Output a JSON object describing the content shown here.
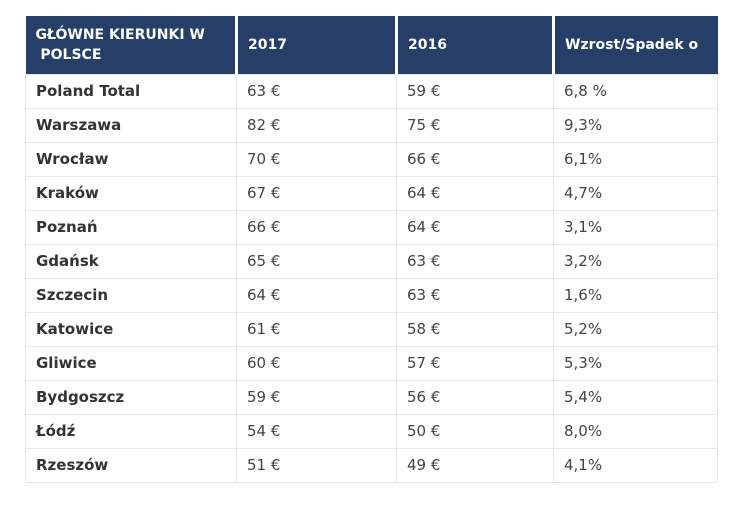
{
  "colors": {
    "header_bg": "#253f68",
    "header_text": "#ffffff",
    "grid": "#e7e7e7",
    "name_text": "#333333",
    "value_text": "#444444",
    "page_bg": "#ffffff"
  },
  "chart_data": {
    "type": "table",
    "title": "GŁÓWNE KIERUNKI W POLSCE",
    "columns": [
      "GŁÓWNE KIERUNKI W\n POLSCE",
      "2017",
      "2016",
      "Wzrost/Spadek o"
    ],
    "rows": [
      [
        "Poland Total",
        "63 €",
        "59 €",
        "6,8 %"
      ],
      [
        "Warszawa",
        "82 €",
        "75 €",
        "9,3%"
      ],
      [
        "Wrocław",
        "70 €",
        "66 €",
        "6,1%"
      ],
      [
        "Kraków",
        "67 €",
        "64 €",
        "4,7%"
      ],
      [
        "Poznań",
        "66 €",
        "64 €",
        "3,1%"
      ],
      [
        "Gdańsk",
        "65 €",
        "63 €",
        "3,2%"
      ],
      [
        "Szczecin",
        "64 €",
        "63 €",
        "1,6%"
      ],
      [
        "Katowice",
        "61 €",
        "58 €",
        "5,2%"
      ],
      [
        "Gliwice",
        "60 €",
        "57 €",
        "5,3%"
      ],
      [
        "Bydgoszcz",
        "59 €",
        "56 €",
        "5,4%"
      ],
      [
        "Łódź",
        "54 €",
        "50 €",
        "8,0%"
      ],
      [
        "Rzeszów",
        "51 €",
        "49 €",
        "4,1%"
      ]
    ],
    "categories": [
      "Poland Total",
      "Warszawa",
      "Wrocław",
      "Kraków",
      "Poznań",
      "Gdańsk",
      "Szczecin",
      "Katowice",
      "Gliwice",
      "Bydgoszcz",
      "Łódź",
      "Rzeszów"
    ],
    "series": [
      {
        "name": "2017",
        "unit": "€",
        "values": [
          63,
          82,
          70,
          67,
          66,
          65,
          64,
          61,
          60,
          59,
          54,
          51
        ]
      },
      {
        "name": "2016",
        "unit": "€",
        "values": [
          59,
          75,
          66,
          64,
          64,
          63,
          63,
          58,
          57,
          56,
          50,
          49
        ]
      },
      {
        "name": "Wzrost/Spadek o",
        "unit": "%",
        "values": [
          6.8,
          9.3,
          6.1,
          4.7,
          3.1,
          3.2,
          1.6,
          5.2,
          5.3,
          5.4,
          8.0,
          4.1
        ]
      }
    ]
  }
}
